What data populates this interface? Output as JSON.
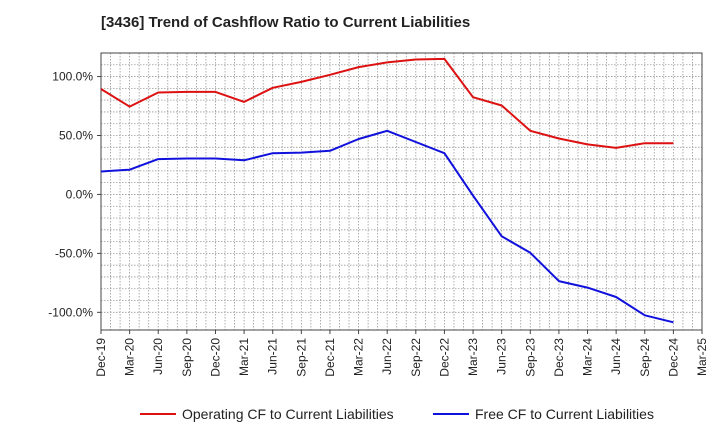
{
  "chart_data": {
    "type": "line",
    "title": "[3436]  Trend of Cashflow Ratio to Current Liabilities",
    "xlabel": "",
    "ylabel": "",
    "x_tick_labels": [
      "Dec-19",
      "Mar-20",
      "Jun-20",
      "Sep-20",
      "Dec-20",
      "Mar-21",
      "Jun-21",
      "Sep-21",
      "Dec-21",
      "Mar-22",
      "Jun-22",
      "Sep-22",
      "Dec-22",
      "Mar-23",
      "Jun-23",
      "Sep-23",
      "Dec-23",
      "Mar-24",
      "Jun-24",
      "Sep-24",
      "Dec-24",
      "Mar-25"
    ],
    "y_ticks": [
      100,
      50,
      0,
      -50,
      -100
    ],
    "y_tick_labels": [
      "100.0%",
      "50.0%",
      "0.0%",
      "-50.0%",
      "-100.0%"
    ],
    "ylim": [
      -115,
      120
    ],
    "grid": true,
    "legend_position": "bottom",
    "x": [
      "Dec-19",
      "Mar-20",
      "Jun-20",
      "Sep-20",
      "Dec-20",
      "Mar-21",
      "Jun-21",
      "Sep-21",
      "Dec-21",
      "Mar-22",
      "Jun-22",
      "Sep-22",
      "Dec-22",
      "Mar-23",
      "Jun-23",
      "Sep-23",
      "Dec-23",
      "Mar-24",
      "Jun-24",
      "Sep-24",
      "Dec-24"
    ],
    "series": [
      {
        "name": "Operating CF to Current Liabilities",
        "color": "#dd1111",
        "values": [
          89.5,
          74.5,
          86.5,
          87.0,
          87.0,
          78.5,
          90.5,
          95.5,
          101.5,
          108.0,
          112.0,
          114.5,
          115.0,
          82.5,
          75.5,
          54.0,
          47.5,
          42.5,
          39.5,
          43.5,
          43.5
        ]
      },
      {
        "name": "Free CF to Current Liabilities",
        "color": "#1111dd",
        "values": [
          19.5,
          21.0,
          30.0,
          30.5,
          30.5,
          29.0,
          35.0,
          35.5,
          37.0,
          47.0,
          54.0,
          44.5,
          35.0,
          -1.0,
          -35.5,
          -49.5,
          -73.5,
          -79.0,
          -87.0,
          -102.5,
          -108.5
        ]
      }
    ]
  }
}
